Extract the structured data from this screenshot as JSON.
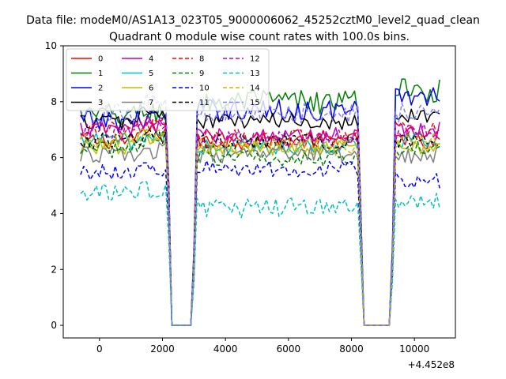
{
  "chart_data": {
    "type": "line",
    "suptitle": "Data file: modeM0/AS1A13_023T05_9000006062_45252cztM0_level2_quad_clean",
    "title": "Quadrant 0 module wise count rates with 100.0s bins.",
    "xlabel": "",
    "ylabel": "",
    "x_offset_label": "+4.452e8",
    "xlim": [
      -1150,
      11300
    ],
    "ylim": [
      -0.45,
      10
    ],
    "xticks": [
      0,
      2000,
      4000,
      6000,
      8000,
      10000
    ],
    "yticks": [
      0,
      2,
      4,
      6,
      8,
      10
    ],
    "grid": false,
    "legend_position": "upper-left",
    "legend_columns": 4,
    "gaps": [
      [
        2280,
        2960
      ],
      [
        8360,
        9260
      ]
    ],
    "x_range": [
      -600,
      10800
    ],
    "bin_seconds": 100,
    "series": [
      {
        "name": "0",
        "color": "#ff0000",
        "dash": "solid",
        "level": 6.6,
        "amp": 0.3,
        "trend": [
          0,
          0,
          0
        ]
      },
      {
        "name": "1",
        "color": "#008000",
        "dash": "solid",
        "level": 7.5,
        "amp": 0.45,
        "trend": [
          0,
          0.5,
          0.9
        ]
      },
      {
        "name": "2",
        "color": "#0000ff",
        "dash": "solid",
        "level": 7.3,
        "amp": 0.4,
        "trend": [
          0,
          0.4,
          0.9
        ]
      },
      {
        "name": "3",
        "color": "#000000",
        "dash": "solid",
        "level": 7.3,
        "amp": 0.3,
        "trend": [
          0,
          0,
          0.2
        ]
      },
      {
        "name": "4",
        "color": "#bf00bf",
        "dash": "solid",
        "level": 7.0,
        "amp": 0.3,
        "trend": [
          0,
          -0.2,
          0
        ]
      },
      {
        "name": "5",
        "color": "#00bfbf",
        "dash": "solid",
        "level": 6.6,
        "amp": 0.3,
        "trend": [
          0,
          -0.2,
          0
        ]
      },
      {
        "name": "6",
        "color": "#bfbf00",
        "dash": "solid",
        "level": 6.4,
        "amp": 0.3,
        "trend": [
          0,
          -0.1,
          0
        ]
      },
      {
        "name": "7",
        "color": "#808080",
        "dash": "solid",
        "level": 6.1,
        "amp": 0.3,
        "trend": [
          0,
          0,
          0
        ]
      },
      {
        "name": "8",
        "color": "#ff0000",
        "dash": "dashed",
        "level": 7.0,
        "amp": 0.3,
        "trend": [
          0,
          -0.3,
          0
        ]
      },
      {
        "name": "9",
        "color": "#008000",
        "dash": "dashed",
        "level": 6.3,
        "amp": 0.3,
        "trend": [
          0,
          -0.3,
          0
        ]
      },
      {
        "name": "10",
        "color": "#0000ff",
        "dash": "dashed",
        "level": 5.2,
        "amp": 0.3,
        "trend": [
          0.3,
          0.4,
          0
        ]
      },
      {
        "name": "11",
        "color": "#000000",
        "dash": "dashed",
        "level": 6.6,
        "amp": 0.3,
        "trend": [
          0,
          0,
          0
        ]
      },
      {
        "name": "12",
        "color": "#bf00bf",
        "dash": "dashed",
        "level": 6.9,
        "amp": 0.3,
        "trend": [
          0,
          -0.2,
          0
        ]
      },
      {
        "name": "13",
        "color": "#00bfbf",
        "dash": "dashed",
        "level": 4.2,
        "amp": 0.35,
        "trend": [
          0.5,
          0,
          0.3
        ]
      },
      {
        "name": "14",
        "color": "#bfbf00",
        "dash": "dashed",
        "level": 6.6,
        "amp": 0.3,
        "trend": [
          0,
          -0.2,
          0
        ]
      },
      {
        "name": "15",
        "color": "#8080ff",
        "dash": "dashed",
        "level": 7.6,
        "amp": 0.35,
        "trend": [
          0,
          0,
          0
        ]
      }
    ]
  }
}
